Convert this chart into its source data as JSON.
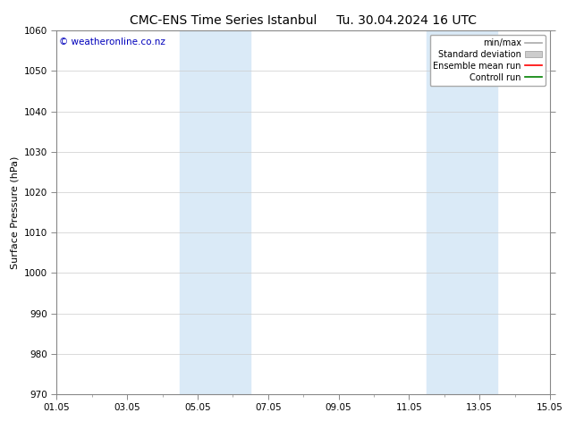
{
  "title_left": "CMC-ENS Time Series Istanbul",
  "title_right": "Tu. 30.04.2024 16 UTC",
  "ylabel": "Surface Pressure (hPa)",
  "ylim": [
    970,
    1060
  ],
  "yticks": [
    970,
    980,
    990,
    1000,
    1010,
    1020,
    1030,
    1040,
    1050,
    1060
  ],
  "xlabel_ticks": [
    "01.05",
    "03.05",
    "05.05",
    "07.05",
    "09.05",
    "11.05",
    "13.05",
    "15.05"
  ],
  "x_tick_positions": [
    0,
    2,
    4,
    6,
    8,
    10,
    12,
    14
  ],
  "x_total_days": 14,
  "shaded_bands": [
    {
      "x_start": 3.5,
      "x_end": 5.5
    },
    {
      "x_start": 10.5,
      "x_end": 12.5
    }
  ],
  "band_color": "#daeaf7",
  "watermark_text": "© weatheronline.co.nz",
  "watermark_color": "#0000bb",
  "legend_labels": [
    "min/max",
    "Standard deviation",
    "Ensemble mean run",
    "Controll run"
  ],
  "legend_colors": [
    "#aaaaaa",
    "#cccccc",
    "#ff0000",
    "#008000"
  ],
  "background_color": "#ffffff",
  "plot_bg_color": "#ffffff",
  "title_fontsize": 10,
  "axis_fontsize": 8,
  "tick_fontsize": 7.5,
  "watermark_fontsize": 7.5,
  "legend_fontsize": 7,
  "grid_color": "#cccccc",
  "grid_linewidth": 0.5,
  "spine_color": "#888888"
}
